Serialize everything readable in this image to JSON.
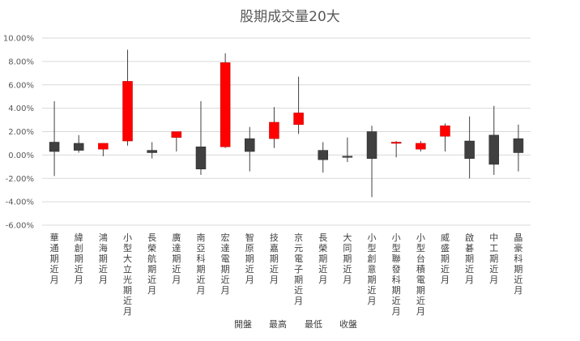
{
  "chart_data": {
    "type": "candlestick",
    "title": "股期成交量20大",
    "xlabel": "",
    "ylabel": "",
    "ylim": [
      -6,
      10
    ],
    "y_ticks": [
      10,
      8,
      6,
      4,
      2,
      0,
      -2,
      -4,
      -6
    ],
    "y_tick_labels": [
      "10.00%",
      "8.00%",
      "6.00%",
      "4.00%",
      "2.00%",
      "0.00%",
      "-2.00%",
      "-4.00%",
      "-6.00%"
    ],
    "grid": true,
    "legend_position": "bottom",
    "legend": [
      "開盤",
      "最高",
      "最低",
      "收盤"
    ],
    "colors": {
      "up": "#ff0000",
      "down": "#404040",
      "wick": "#404040",
      "grid": "#d9d9d9"
    },
    "categories": [
      "華通期近月",
      "緯創期近月",
      "鴻海期近月",
      "小型大立光期近月",
      "長榮航期近月",
      "廣達期近月",
      "南亞科期近月",
      "宏達電期近月",
      "智原期近月",
      "技嘉期近月",
      "京元電子期近月",
      "長榮期近月",
      "大同期近月",
      "小型創意期近月",
      "小型聯發科期近月",
      "小型台積電期近月",
      "威盛期近月",
      "啟碁期近月",
      "中工期近月",
      "晶豪科期近月"
    ],
    "series": [
      {
        "name": "開盤",
        "values": [
          1.1,
          1.0,
          0.5,
          1.2,
          0.4,
          1.5,
          0.7,
          0.7,
          1.4,
          1.4,
          2.6,
          0.4,
          -0.1,
          2.0,
          1.0,
          0.5,
          1.6,
          1.2,
          1.7,
          1.4
        ]
      },
      {
        "name": "最高",
        "values": [
          4.6,
          1.7,
          1.0,
          9.0,
          1.1,
          2.0,
          4.6,
          8.7,
          2.4,
          4.1,
          6.7,
          1.1,
          1.5,
          2.5,
          1.2,
          1.2,
          2.7,
          3.3,
          4.2,
          2.6
        ]
      },
      {
        "name": "最低",
        "values": [
          -1.8,
          0.2,
          -0.1,
          0.8,
          -0.3,
          0.3,
          -1.7,
          0.6,
          -1.4,
          0.6,
          1.8,
          -1.5,
          -0.6,
          -3.6,
          -0.2,
          0.3,
          0.3,
          -2.0,
          -1.7,
          -1.4
        ]
      },
      {
        "name": "收盤",
        "values": [
          0.3,
          0.4,
          1.0,
          6.3,
          0.2,
          2.0,
          -1.2,
          7.9,
          0.3,
          2.8,
          3.6,
          -0.4,
          -0.2,
          -0.3,
          1.1,
          1.0,
          2.5,
          -0.3,
          -0.8,
          0.2
        ]
      }
    ]
  }
}
